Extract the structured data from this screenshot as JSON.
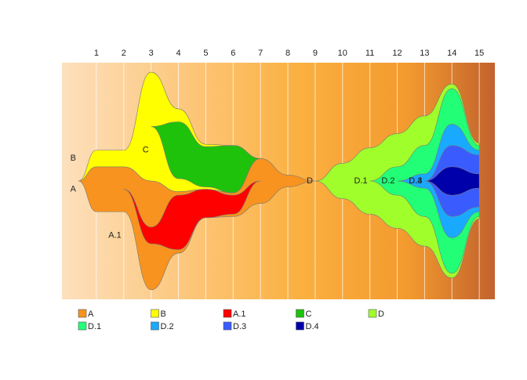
{
  "chart_data": {
    "type": "fishplot",
    "x": [
      0.34,
      1,
      2,
      3,
      4,
      5,
      6,
      7,
      8,
      9,
      10,
      11,
      12,
      13,
      14,
      15
    ],
    "xlim": [
      -0.26,
      15.57
    ],
    "xticks": [
      1,
      2,
      3,
      4,
      5,
      6,
      7,
      8,
      9,
      10,
      11,
      12,
      13,
      14,
      15
    ],
    "ylim": [
      0,
      100
    ],
    "series": [
      {
        "name": "A",
        "color": "#f7931e",
        "values": [
          0,
          19,
          19,
          46,
          26,
          12,
          10,
          19,
          5,
          0,
          null,
          null,
          null,
          null,
          null,
          null
        ]
      },
      {
        "name": "B",
        "color": "#ffff00",
        "values": [
          0,
          7,
          7,
          46,
          35,
          19,
          20,
          0,
          null,
          null,
          null,
          null,
          null,
          null,
          null,
          null
        ]
      },
      {
        "name": "A.1",
        "color": "#ff0000",
        "parent": "A",
        "values": [
          null,
          null,
          0,
          7,
          23,
          12,
          8,
          0,
          null,
          null,
          null,
          null,
          null,
          null,
          null,
          null
        ]
      },
      {
        "name": "C",
        "color": "#1fc20a",
        "parent": "B",
        "values": [
          null,
          null,
          null,
          0,
          24,
          17,
          20,
          0,
          null,
          null,
          null,
          null,
          null,
          null,
          null,
          null
        ]
      },
      {
        "name": "D",
        "color": "#a0ff2a",
        "values": [
          null,
          null,
          null,
          null,
          null,
          null,
          null,
          null,
          null,
          0,
          15,
          28,
          40,
          55,
          82,
          32
        ]
      },
      {
        "name": "D.1",
        "color": "#22ff77",
        "parent": "D",
        "values": [
          null,
          null,
          null,
          null,
          null,
          null,
          null,
          null,
          null,
          null,
          null,
          0,
          12,
          30,
          78,
          30
        ]
      },
      {
        "name": "D.2",
        "color": "#19aaff",
        "parent": "D.1",
        "values": [
          null,
          null,
          null,
          null,
          null,
          null,
          null,
          null,
          null,
          null,
          null,
          null,
          0,
          6,
          48,
          26
        ]
      },
      {
        "name": "D.3",
        "color": "#3a5cff",
        "parent": "D.2",
        "values": [
          null,
          null,
          null,
          null,
          null,
          null,
          null,
          null,
          null,
          null,
          null,
          null,
          null,
          0,
          30,
          22
        ]
      },
      {
        "name": "D.4",
        "color": "#0000aa",
        "parent": "D.3",
        "values": [
          null,
          null,
          null,
          null,
          null,
          null,
          null,
          null,
          null,
          null,
          null,
          null,
          null,
          0,
          12,
          6
        ]
      }
    ]
  }
}
